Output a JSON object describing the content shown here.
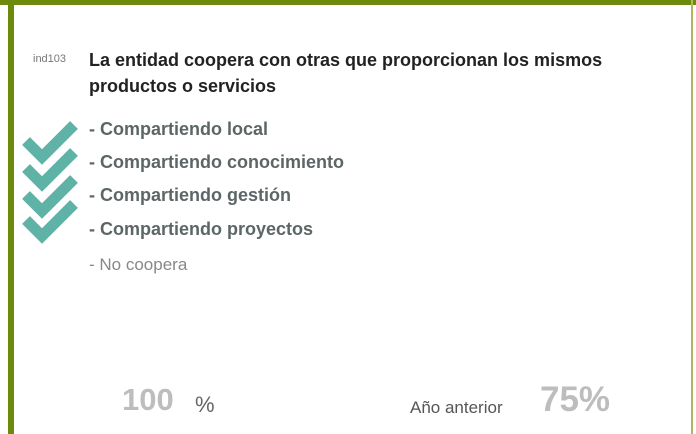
{
  "indicator": {
    "code": "ind103",
    "title": "La entidad coopera con otras que proporcionan los mismos productos o servicios"
  },
  "options": [
    {
      "label": "- Compartiendo local",
      "checked": true
    },
    {
      "label": "- Compartiendo conocimiento",
      "checked": true
    },
    {
      "label": "- Compartiendo gestión",
      "checked": true
    },
    {
      "label": "- Compartiendo proyectos",
      "checked": true
    },
    {
      "label": "- No coopera",
      "checked": false
    }
  ],
  "result": {
    "value": "100",
    "unit": "%"
  },
  "previous": {
    "label": "Año anterior",
    "value": "75%"
  }
}
